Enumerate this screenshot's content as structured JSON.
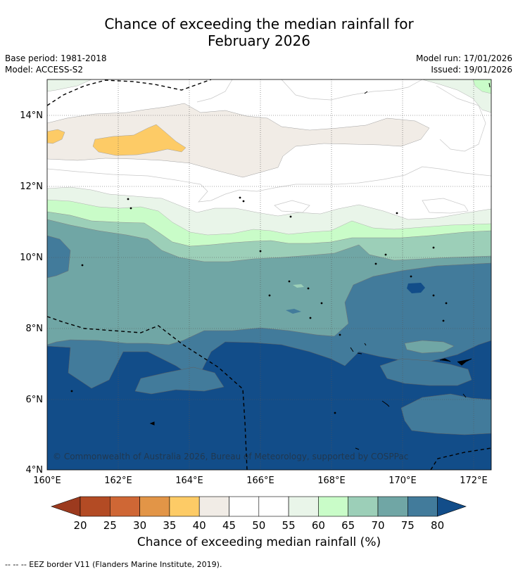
{
  "title": {
    "line1": "Chance of exceeding the median rainfall for",
    "line2": "February 2026"
  },
  "meta": {
    "base_period": "Base period: 1981-2018",
    "model": "Model: ACCESS-S2",
    "model_run": "Model run: 17/01/2026",
    "issued": "Issued: 19/01/2026"
  },
  "map": {
    "lat_labels": [
      "14°N",
      "12°N",
      "10°N",
      "8°N",
      "6°N",
      "4°N"
    ],
    "lon_labels": [
      "160°E",
      "162°E",
      "164°E",
      "166°E",
      "168°E",
      "170°E",
      "172°E"
    ],
    "copyright": "© Commonwealth of Australia 2026, Bureau of Meteorology, supported by COSPPac"
  },
  "colorbar": {
    "ticks": [
      "20",
      "25",
      "30",
      "35",
      "40",
      "45",
      "50",
      "55",
      "60",
      "65",
      "70",
      "75",
      "80"
    ],
    "colors": {
      "under": "#9c3a1e",
      "c20_25": "#b34b24",
      "c25_30": "#cf6735",
      "c30_35": "#e29547",
      "c35_40": "#fdcb66",
      "c40_45": "#f1ece6",
      "c45_50": "#ffffff",
      "c50_55": "#ffffff",
      "c55_60": "#e9f5e9",
      "c60_65": "#c9fcc8",
      "c65_70": "#9ccfb8",
      "c70_75": "#70a6a5",
      "c75_80": "#427b9b",
      "over": "#124d89"
    },
    "label": "Chance of exceeding median rainfall (%)"
  },
  "footnote": "--  --  -- EEZ border V11 (Flanders Marine Institute, 2019)."
}
